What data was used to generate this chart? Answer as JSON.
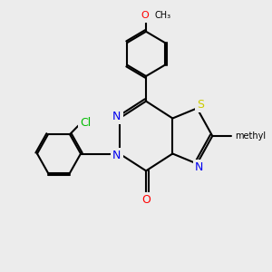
{
  "background_color": "#ececec",
  "bond_color": "#000000",
  "bond_width": 1.5,
  "atom_colors": {
    "N": "#0000ee",
    "O": "#ff0000",
    "S": "#cccc00",
    "Cl": "#00bb00",
    "C": "#000000"
  },
  "font_size_atom": 9,
  "font_size_small": 7,
  "xlim": [
    0,
    10
  ],
  "ylim": [
    0,
    10
  ]
}
